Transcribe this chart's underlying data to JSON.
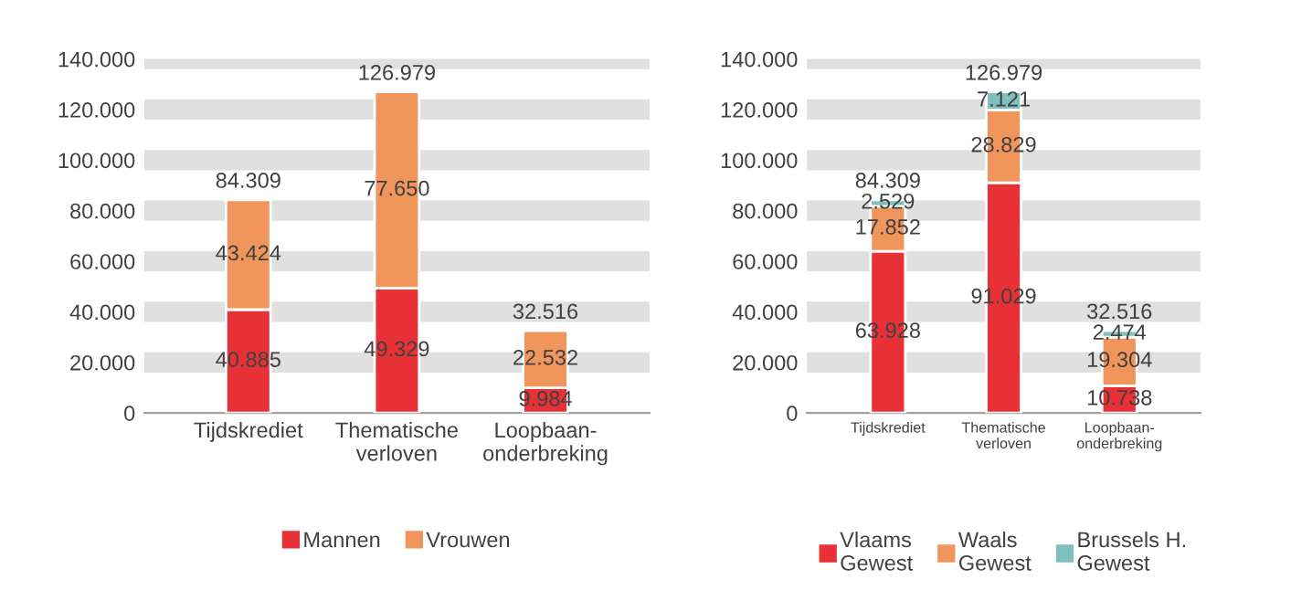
{
  "chart_data": [
    {
      "type": "bar",
      "stacked": true,
      "categories": [
        "Tijdskrediet",
        "Thematische\nverloven",
        "Loopbaan-\nonderbreking"
      ],
      "series": [
        {
          "name": "Mannen",
          "color": "#e83137",
          "values": [
            40885,
            49329,
            9984
          ],
          "value_labels": [
            "40.885",
            "49.329",
            "9.984"
          ]
        },
        {
          "name": "Vrouwen",
          "color": "#f0965c",
          "values": [
            43424,
            77650,
            22532
          ],
          "value_labels": [
            "43.424",
            "77.650",
            "22.532"
          ]
        }
      ],
      "totals": [
        "84.309",
        "126.979",
        "32.516"
      ],
      "ylim": [
        0,
        140000
      ],
      "yticks": [
        {
          "value": 0,
          "label": "0"
        },
        {
          "value": 20000,
          "label": "20.000"
        },
        {
          "value": 40000,
          "label": "40.000"
        },
        {
          "value": 60000,
          "label": "60.000"
        },
        {
          "value": 80000,
          "label": "80.000"
        },
        {
          "value": 100000,
          "label": "100.000"
        },
        {
          "value": 120000,
          "label": "120.000"
        },
        {
          "value": 140000,
          "label": "140.000"
        }
      ],
      "grid": "y",
      "legend": "bottom"
    },
    {
      "type": "bar",
      "stacked": true,
      "categories": [
        "Tijdskrediet",
        "Thematische\nverloven",
        "Loopbaan-\nonderbreking"
      ],
      "series": [
        {
          "name": "Vlaams\nGewest",
          "color": "#e83137",
          "values": [
            63928,
            91029,
            10738
          ],
          "value_labels": [
            "63.928",
            "91.029",
            "10.738"
          ]
        },
        {
          "name": "Waals\nGewest",
          "color": "#f0965c",
          "values": [
            17852,
            28829,
            19304
          ],
          "value_labels": [
            "17.852",
            "28.829",
            "19.304"
          ]
        },
        {
          "name": "Brussels H.\nGewest",
          "color": "#7fbfbd",
          "values": [
            2529,
            7121,
            2474
          ],
          "value_labels": [
            "2.529",
            "7.121",
            "2.474"
          ]
        }
      ],
      "totals": [
        "84.309",
        "126.979",
        "32.516"
      ],
      "ylim": [
        0,
        140000
      ],
      "yticks": [
        {
          "value": 0,
          "label": "0"
        },
        {
          "value": 20000,
          "label": "20.000"
        },
        {
          "value": 40000,
          "label": "40.000"
        },
        {
          "value": 60000,
          "label": "60.000"
        },
        {
          "value": 80000,
          "label": "80.000"
        },
        {
          "value": 100000,
          "label": "100.000"
        },
        {
          "value": 120000,
          "label": "120.000"
        },
        {
          "value": 140000,
          "label": "140.000"
        }
      ],
      "grid": "y",
      "legend": "bottom"
    }
  ]
}
